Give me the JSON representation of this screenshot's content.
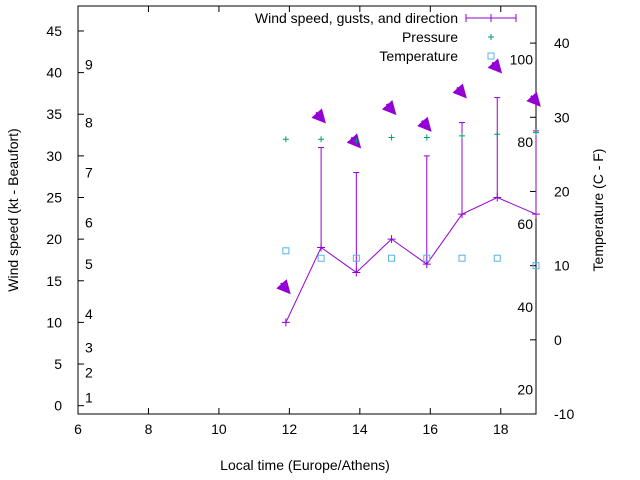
{
  "chart_data": {
    "type": "line",
    "xlabel": "Local time (Europe/Athens)",
    "ylabel": "Wind speed (kt - Beaufort)",
    "y2label": "Temperature (C - F)",
    "xlim": [
      6,
      19
    ],
    "ylim": [
      -1,
      48
    ],
    "y2lim": [
      -10,
      45
    ],
    "x_ticks": [
      "6",
      "8",
      "10",
      "12",
      "14",
      "16",
      "18"
    ],
    "y_ticks": [
      "0",
      "5",
      "10",
      "15",
      "20",
      "25",
      "30",
      "35",
      "40",
      "45"
    ],
    "y2_ticks": [
      "-10",
      "0",
      "10",
      "20",
      "30",
      "40"
    ],
    "beaufort_labels": [
      {
        "text": "1",
        "y": 1
      },
      {
        "text": "2",
        "y": 4
      },
      {
        "text": "3",
        "y": 7
      },
      {
        "text": "4",
        "y": 11
      },
      {
        "text": "5",
        "y": 17
      },
      {
        "text": "6",
        "y": 22
      },
      {
        "text": "7",
        "y": 28
      },
      {
        "text": "8",
        "y": 34
      },
      {
        "text": "9",
        "y": 41
      }
    ],
    "fahrenheit_labels": [
      {
        "text": "20",
        "c": -6.7
      },
      {
        "text": "40",
        "c": 4.4
      },
      {
        "text": "60",
        "c": 15.6
      },
      {
        "text": "80",
        "c": 26.7
      },
      {
        "text": "100",
        "c": 37.8
      }
    ],
    "legend": {
      "position": "top-right",
      "entries": [
        "Wind speed, gusts, and direction",
        "Pressure",
        "Temperature"
      ]
    },
    "series": [
      {
        "name": "Wind speed, gusts, and direction",
        "color": "#9400d3",
        "x": [
          11.9,
          12.9,
          13.9,
          14.9,
          15.9,
          16.9,
          17.9,
          19.0
        ],
        "speed": [
          10,
          19,
          16,
          20,
          17,
          23,
          25,
          23
        ],
        "gust": [
          10,
          31,
          28,
          20,
          30,
          34,
          37,
          33
        ],
        "arrow_y": [
          14,
          34.5,
          31.5,
          35.5,
          33.5,
          37.5,
          40.5,
          36.5
        ]
      },
      {
        "name": "Pressure",
        "color": "#009e73",
        "x": [
          11.9,
          12.9,
          13.9,
          14.9,
          15.9,
          16.9,
          17.9,
          19.0
        ],
        "y": [
          32,
          32,
          31.8,
          32.2,
          32.2,
          32.4,
          32.6,
          32.8
        ]
      },
      {
        "name": "Temperature",
        "color": "#56b4e9",
        "x": [
          11.9,
          12.9,
          13.9,
          14.9,
          15.9,
          16.9,
          17.9,
          19.0
        ],
        "y": [
          12,
          11,
          11,
          11,
          11,
          11,
          11,
          10
        ]
      }
    ]
  }
}
